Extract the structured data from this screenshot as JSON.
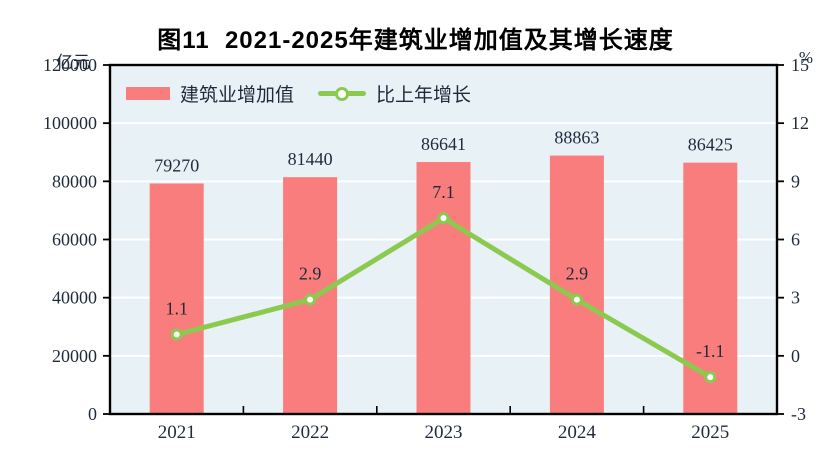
{
  "chart_data": {
    "type": "bar",
    "combo": "bar+line",
    "title": "图11  2021-2025年建筑业增加值及其增长速度",
    "categories": [
      "2021",
      "2022",
      "2023",
      "2024",
      "2025"
    ],
    "series": [
      {
        "name": "建筑业增加值",
        "type": "bar",
        "axis": "left",
        "values": [
          79270,
          81440,
          86641,
          88863,
          86425
        ]
      },
      {
        "name": "比上年增长",
        "type": "line",
        "axis": "right",
        "values": [
          1.1,
          2.9,
          7.1,
          2.9,
          -1.1
        ]
      }
    ],
    "left_axis": {
      "unit": "亿元",
      "min": 0,
      "max": 120000,
      "tick_step": 20000,
      "ticks": [
        0,
        20000,
        40000,
        60000,
        80000,
        100000,
        120000
      ]
    },
    "right_axis": {
      "unit": "%",
      "min": -3,
      "max": 15,
      "tick_step": 3,
      "ticks": [
        -3,
        0,
        3,
        6,
        9,
        12,
        15
      ]
    },
    "legend_position": "top-left-inside",
    "grid": "horizontal-white",
    "colors": {
      "bar": "#fa7d7d",
      "line": "#8cc94f",
      "marker_fill": "#ffffff",
      "plot_background": "#e8f1f6",
      "gridline": "#ffffff",
      "axis": "#000000",
      "text": "#1e2a3a",
      "title_text": "#000000"
    }
  }
}
